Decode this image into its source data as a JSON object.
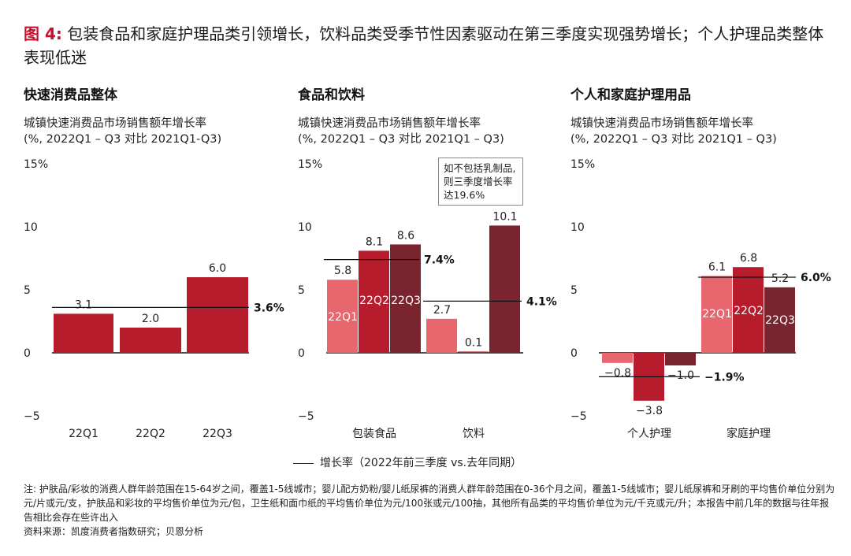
{
  "title": {
    "figure_label": "图 4:",
    "text": "包装食品和家庭护理品类引领增长，饮料品类受季节性因素驱动在第三季度实现强势增长；个人护理品类整体表现低迷"
  },
  "panels": [
    {
      "title": "快速消费品整体",
      "subtitle_line1": "城镇快速消费品市场销售额年增长率",
      "subtitle_line2": "(%, 2022Q1 – Q3 对比 2021Q1-Q3)"
    },
    {
      "title": "食品和饮料",
      "subtitle_line1": "城镇快速消费品市场销售额年增长率",
      "subtitle_line2": "(%, 2022Q1 – Q3 对比 2021Q1 – Q3)"
    },
    {
      "title": "个人和家庭护理用品",
      "subtitle_line1": "城镇快速消费品市场销售额年增长率",
      "subtitle_line2": "(%, 2022Q1 – Q3 对比 2021Q1 – Q3)"
    }
  ],
  "callout": {
    "text_line1": "如不包括乳制品,",
    "text_line2": "则三季度增长率",
    "text_line3": "达19.6%"
  },
  "legend": {
    "label": "增长率（2022年前三季度 vs.去年同期）"
  },
  "footnote": {
    "note": "注: 护肤品/彩妆的消费人群年龄范围在15-64岁之间，覆盖1-5线城市；婴儿配方奶粉/婴儿纸尿裤的消费人群年龄范围在0-36个月之间，覆盖1-5线城市；婴儿纸尿裤和牙刷的平均售价单位分别为元/片或元/支，护肤品和彩妆的平均售价单位为元/包，卫生纸和面巾纸的平均售价单位为元/100张或元/100抽，其他所有品类的平均售价单位为元/千克或元/升；本报告中前几年的数据与往年报告相比会存在些许出入",
    "source": "资料来源：凯度消费者指数研究；贝恩分析"
  },
  "colors": {
    "q1": "#e8666d",
    "q2": "#b71c2c",
    "q3": "#7a2430",
    "fmcg": "#b71c2c",
    "title_accent": "#c8102e"
  },
  "chart_data": [
    {
      "type": "bar",
      "title": "快速消费品整体",
      "ylabel": "城镇快速消费品市场销售额年增长率 (%, 2022Q1 – Q3 对比 2021Q1-Q3)",
      "ylim": [
        -5,
        15
      ],
      "yticks": [
        "15%",
        "10",
        "5",
        "0",
        "−5"
      ],
      "categories": [
        "22Q1",
        "22Q2",
        "22Q3"
      ],
      "values": [
        3.1,
        2.0,
        6.0
      ],
      "value_labels": [
        "3.1",
        "2.0",
        "6.0"
      ],
      "reference_line": {
        "value": 3.6,
        "label": "3.6%"
      }
    },
    {
      "type": "bar",
      "title": "食品和饮料",
      "ylim": [
        -5,
        15
      ],
      "yticks": [
        "15%",
        "10",
        "5",
        "0",
        "−5"
      ],
      "groups": [
        {
          "name": "包装食品",
          "quarters": [
            "22Q1",
            "22Q2",
            "22Q3"
          ],
          "values": [
            5.8,
            8.1,
            8.6
          ],
          "value_labels": [
            "5.8",
            "8.1",
            "8.6"
          ],
          "reference_line": {
            "value": 7.4,
            "label": "7.4%"
          }
        },
        {
          "name": "饮料",
          "quarters": [
            "22Q1",
            "22Q2",
            "22Q3"
          ],
          "values": [
            2.7,
            0.1,
            10.1
          ],
          "value_labels": [
            "2.7",
            "0.1",
            "10.1"
          ],
          "reference_line": {
            "value": 4.1,
            "label": "4.1%"
          }
        }
      ]
    },
    {
      "type": "bar",
      "title": "个人和家庭护理用品",
      "ylim": [
        -5,
        15
      ],
      "yticks": [
        "15%",
        "10",
        "5",
        "0",
        "−5"
      ],
      "groups": [
        {
          "name": "个人护理",
          "quarters": [
            "22Q1",
            "22Q2",
            "22Q3"
          ],
          "values": [
            -0.8,
            -3.8,
            -1.0
          ],
          "value_labels": [
            "−0.8",
            "−3.8",
            "−1.0"
          ],
          "reference_line": {
            "value": -1.9,
            "label": "−1.9%"
          }
        },
        {
          "name": "家庭护理",
          "quarters": [
            "22Q1",
            "22Q2",
            "22Q3"
          ],
          "values": [
            6.1,
            6.8,
            5.2
          ],
          "value_labels": [
            "6.1",
            "6.8",
            "5.2"
          ],
          "reference_line": {
            "value": 6.0,
            "label": "6.0%"
          }
        }
      ]
    }
  ]
}
